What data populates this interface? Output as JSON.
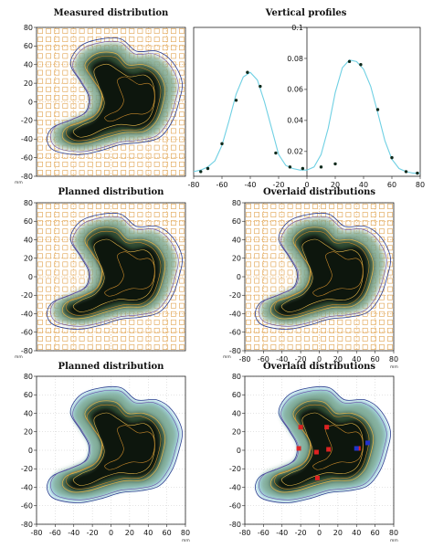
{
  "panels": [
    {
      "id": "measured-top",
      "title": "Measured distribution",
      "style": "grid",
      "show_xticks": false,
      "show_unit_y": true,
      "markers": false
    },
    {
      "id": "planned-mid",
      "title": "Planned distribution",
      "style": "grid",
      "show_xticks": false,
      "show_unit_y": true,
      "markers": false
    },
    {
      "id": "overlaid-mid",
      "title": "Overlaid distributions",
      "style": "grid",
      "show_xticks": true,
      "show_unit_y": true,
      "markers": false
    },
    {
      "id": "planned-bottom",
      "title": "Planned distribution",
      "style": "clean",
      "show_xticks": true,
      "show_unit_y": false,
      "markers": false
    },
    {
      "id": "overlaid-bottom",
      "title": "Overlaid distributions",
      "style": "clean",
      "show_xticks": true,
      "show_unit_y": false,
      "markers": true
    }
  ],
  "axis": {
    "ticks": [
      "-80",
      "-60",
      "-40",
      "-20",
      "0",
      "20",
      "40",
      "60",
      "80"
    ],
    "unit": "mm"
  },
  "colors": {
    "dose_core": "#0d120d",
    "dose_mid": "#2d4a33",
    "dose_halo": "#7fa890",
    "isodose_yellow": "#e2b64a",
    "isodose_orange": "#c98a2b",
    "isodose_blue": "#2b3d8f",
    "grid_orange": "#e0a04a",
    "profile_line": "#6fd0e3",
    "marker_red": "#dd2222",
    "marker_blue": "#2233cc"
  },
  "chart_data": {
    "type": "line",
    "title": "Vertical profiles",
    "xlabel": "",
    "ylabel": "",
    "xlim": [
      -80,
      80
    ],
    "ylim": [
      0.004,
      0.1
    ],
    "xticks": [
      "-80",
      "-60",
      "-40",
      "-20",
      "0",
      "20",
      "40",
      "60",
      "80"
    ],
    "yticks": [
      "0.02",
      "0.04",
      "0.06",
      "0.08",
      "0.1"
    ],
    "series": [
      {
        "style": "line",
        "x": [
          -80,
          -75,
          -70,
          -65,
          -60,
          -55,
          -50,
          -45,
          -40,
          -35,
          -30,
          -25,
          -20,
          -15,
          -10,
          -5,
          0,
          5,
          10,
          15,
          20,
          25,
          30,
          35,
          40,
          45,
          50,
          55,
          60,
          65,
          70,
          75,
          80
        ],
        "y": [
          0.007,
          0.008,
          0.01,
          0.014,
          0.024,
          0.04,
          0.057,
          0.068,
          0.071,
          0.066,
          0.052,
          0.035,
          0.018,
          0.011,
          0.009,
          0.008,
          0.008,
          0.01,
          0.018,
          0.035,
          0.058,
          0.074,
          0.079,
          0.078,
          0.073,
          0.062,
          0.045,
          0.027,
          0.015,
          0.009,
          0.007,
          0.006,
          0.006
        ]
      },
      {
        "style": "points",
        "x": [
          -75,
          -70,
          -60,
          -50,
          -42,
          -33,
          -22,
          -12,
          -3,
          10,
          20,
          30,
          38,
          50,
          60,
          70,
          78
        ],
        "y": [
          0.007,
          0.009,
          0.025,
          0.053,
          0.071,
          0.062,
          0.019,
          0.01,
          0.009,
          0.01,
          0.012,
          0.078,
          0.076,
          0.047,
          0.016,
          0.007,
          0.006
        ]
      }
    ]
  }
}
